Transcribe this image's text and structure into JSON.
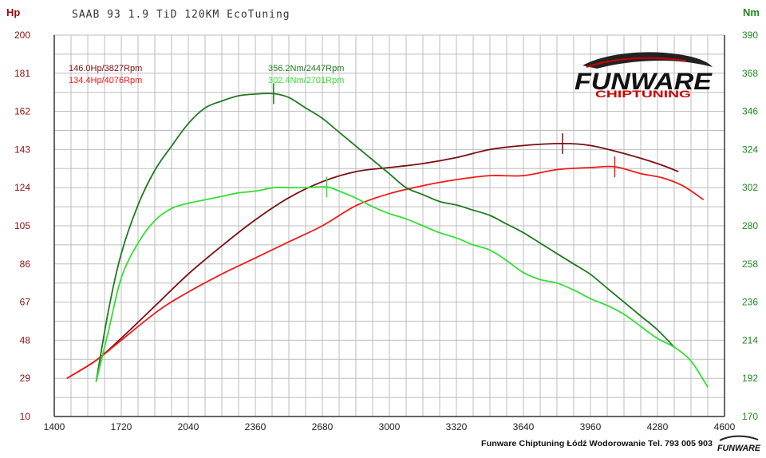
{
  "title": "SAAB 93 1.9 TiD 120KM EcoTuning",
  "colors": {
    "hp_tuned": "#7a0f12",
    "hp_stock": "#f01a1a",
    "nm_tuned": "#1f7a1f",
    "nm_stock": "#33e033",
    "left_axis": "#8b1010",
    "right_axis": "#1f8a1f",
    "grid": "#bdbdbd"
  },
  "logo": {
    "main": "FUNWARE",
    "sub": "CHIPTUNING",
    "small": "FUNWARE"
  },
  "footer": "Funware Chiptuning Łódź Wodorowanie Tel. 793 005 903",
  "chart_data": {
    "type": "line",
    "title": "SAAB 93 1.9 TiD 120KM EcoTuning",
    "left_unit": "Hp",
    "right_unit": "Nm",
    "x_ticks": [
      1400,
      1720,
      2040,
      2360,
      2680,
      3000,
      3320,
      3640,
      3960,
      4280,
      4600
    ],
    "x_range": [
      1400,
      4600
    ],
    "y_left_ticks": [
      10,
      29,
      48,
      67,
      86,
      105,
      124,
      143,
      162,
      181,
      200
    ],
    "y_left_range": [
      10,
      200
    ],
    "y_right_ticks": [
      170,
      192,
      214,
      236,
      258,
      280,
      302,
      324,
      346,
      368,
      390
    ],
    "y_right_range": [
      170,
      390
    ],
    "grid": true,
    "annotations": {
      "hp_tuned": "146.0Hp/3827Rpm",
      "hp_stock": "134.4Hp/4076Rpm",
      "nm_tuned": "356.2Nm/2447Rpm",
      "nm_stock": "302.4Nm/2701Rpm"
    },
    "peaks": {
      "hp_tuned": {
        "x": 3827,
        "y": 146.0
      },
      "hp_stock": {
        "x": 4076,
        "y": 134.4
      },
      "nm_tuned": {
        "x": 2447,
        "y": 356.2
      },
      "nm_stock": {
        "x": 2701,
        "y": 302.4
      }
    },
    "series": [
      {
        "key": "hp_tuned",
        "axis": "left",
        "x": [
          1460,
          1600,
          1720,
          1900,
          2040,
          2200,
          2360,
          2520,
          2680,
          2840,
          3000,
          3160,
          3320,
          3480,
          3640,
          3827,
          3960,
          4120,
          4280,
          4380
        ],
        "y": [
          29,
          38,
          49,
          67,
          81,
          95,
          108,
          119,
          127,
          132,
          134,
          136,
          139,
          143,
          145,
          146,
          145,
          141,
          136,
          132
        ]
      },
      {
        "key": "hp_stock",
        "axis": "left",
        "x": [
          1460,
          1600,
          1720,
          1900,
          2040,
          2200,
          2360,
          2520,
          2680,
          2840,
          3000,
          3160,
          3320,
          3480,
          3640,
          3800,
          3960,
          4076,
          4200,
          4300,
          4400,
          4500
        ],
        "y": [
          29,
          38,
          48,
          63,
          72,
          81,
          89,
          97,
          105,
          115,
          121,
          125,
          128,
          130,
          130,
          133,
          134,
          134.4,
          131,
          129,
          125,
          118
        ]
      },
      {
        "key": "nm_tuned",
        "axis": "right",
        "x": [
          1600,
          1660,
          1720,
          1800,
          1880,
          1960,
          2040,
          2120,
          2200,
          2280,
          2360,
          2447,
          2520,
          2600,
          2680,
          2760,
          2840,
          2920,
          3000,
          3080,
          3160,
          3240,
          3320,
          3400,
          3480,
          3560,
          3640,
          3720,
          3800,
          3880,
          3960,
          4040,
          4120,
          4200,
          4280,
          4360
        ],
        "y": [
          190,
          232,
          264,
          292,
          312,
          326,
          339,
          348,
          352,
          355,
          356,
          356.2,
          354,
          348,
          342,
          334,
          326,
          318,
          310,
          302,
          298,
          294,
          292,
          289,
          286,
          281,
          276,
          270,
          264,
          258,
          252,
          244,
          236,
          228,
          220,
          210
        ]
      },
      {
        "key": "nm_stock",
        "axis": "right",
        "x": [
          1600,
          1660,
          1720,
          1800,
          1880,
          1960,
          2040,
          2120,
          2200,
          2280,
          2360,
          2447,
          2520,
          2600,
          2701,
          2760,
          2840,
          2920,
          3000,
          3080,
          3160,
          3240,
          3320,
          3400,
          3480,
          3560,
          3640,
          3720,
          3800,
          3880,
          3960,
          4040,
          4120,
          4200,
          4280,
          4360,
          4440,
          4520
        ],
        "y": [
          190,
          220,
          250,
          270,
          283,
          290,
          293,
          295,
          297,
          299,
          300,
          302,
          302,
          302,
          302.4,
          300,
          296,
          291,
          287,
          284,
          280,
          276,
          273,
          269,
          266,
          260,
          253,
          249,
          247,
          243,
          238,
          234,
          229,
          222,
          215,
          210,
          202,
          187
        ]
      }
    ]
  }
}
